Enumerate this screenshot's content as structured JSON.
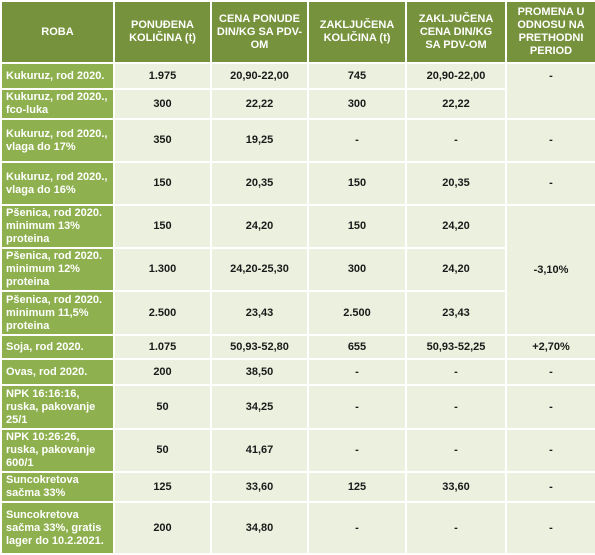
{
  "table": {
    "header": [
      "ROBA",
      "PONUĐENA KOLIČINA (t)",
      "CENA PONUDE DIN/KG SA PDV-OM",
      "ZAKLJUČENA KOLIČINA (t)",
      "ZAKLJUČENA CENA DIN/KG SA PDV-OM",
      "PROMENA U ODNOSU NA PRETHODNI PERIOD"
    ],
    "rows": [
      [
        "Kukuruz, rod 2020.",
        "1.975",
        "20,90-22,00",
        "745",
        "20,90-22,00",
        "-"
      ],
      [
        "Kukuruz, rod 2020., fco-luka",
        "300",
        "22,22",
        "300",
        "22,22"
      ],
      [
        "Kukuruz, rod 2020., vlaga do 17%",
        "350",
        "19,25",
        "-",
        "-",
        "-"
      ],
      [
        "Kukuruz, rod 2020., vlaga do 16%",
        "150",
        "20,35",
        "150",
        "20,35",
        "-"
      ],
      [
        "Pšenica, rod 2020. minimum 13% proteina",
        "150",
        "24,20",
        "150",
        "24,20",
        "-3,10%"
      ],
      [
        "Pšenica, rod 2020. minimum 12% proteina",
        "1.300",
        "24,20-25,30",
        "300",
        "24,20"
      ],
      [
        "Pšenica, rod 2020. minimum 11,5% proteina",
        "2.500",
        "23,43",
        "2.500",
        "23,43"
      ],
      [
        "Soja, rod 2020.",
        "1.075",
        "50,93-52,80",
        "655",
        "50,93-52,25",
        "+2,70%"
      ],
      [
        "Ovas, rod 2020.",
        "200",
        "38,50",
        "-",
        "-",
        "-"
      ],
      [
        "NPK 16:16:16, ruska, pakovanje 25/1",
        "50",
        "34,25",
        "-",
        "-",
        "-"
      ],
      [
        "NPK 10:26:26, ruska, pakovanje 600/1",
        "50",
        "41,67",
        "-",
        "-",
        "-"
      ],
      [
        "Suncokretova sačma 33%",
        "125",
        "33,60",
        "125",
        "33,60",
        "-"
      ],
      [
        "Suncokretova sačma 33%, gratis lager do 10.2.2021.",
        "200",
        "34,80",
        "-",
        "-",
        "-"
      ]
    ]
  }
}
